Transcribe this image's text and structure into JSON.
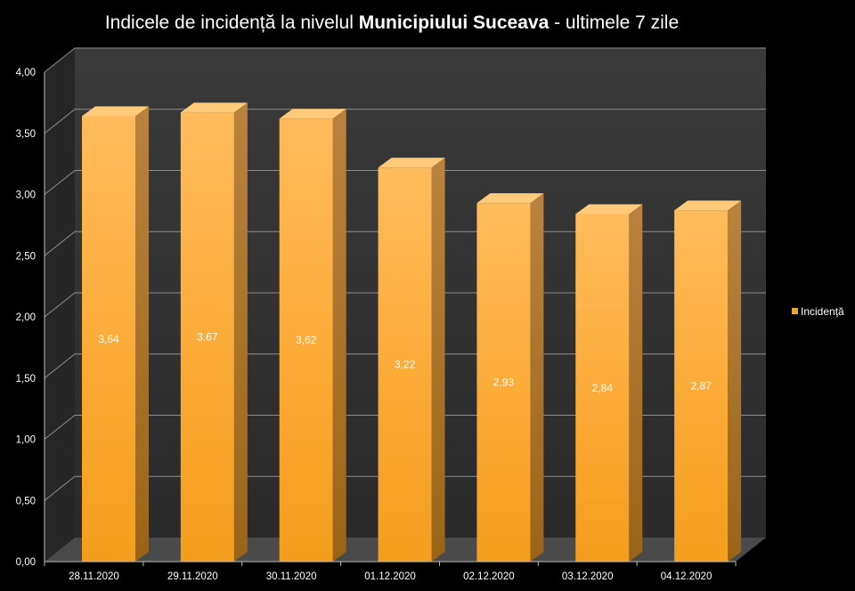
{
  "chart_data": {
    "type": "bar",
    "title": {
      "part1": "Indicele de incidență la nivelul ",
      "part2_bold": "Municipiului Suceava",
      "part3": " - ultimele 7 zile"
    },
    "categories": [
      "28.11.2020",
      "29.11.2020",
      "30.11.2020",
      "01.12.2020",
      "02.12.2020",
      "03.12.2020",
      "04.12.2020"
    ],
    "series": [
      {
        "name": "Incidență",
        "values": [
          3.64,
          3.67,
          3.62,
          3.22,
          2.93,
          2.84,
          2.87
        ],
        "labels": [
          "3,64",
          "3,67",
          "3,62",
          "3,22",
          "2,93",
          "2,84",
          "2,87"
        ],
        "color": "#f5a623"
      }
    ],
    "y_ticks": [
      "0,00",
      "0,50",
      "1,00",
      "1,50",
      "2,00",
      "2,50",
      "3,00",
      "3,50",
      "4,00"
    ],
    "ylim": [
      0,
      4
    ],
    "legend_position": "right",
    "grid": true,
    "style": "3d-column",
    "colors": {
      "background": "#000000",
      "plot_wall": "#2f2f2f",
      "gridline": "#8a8a8a",
      "text": "#ffffff"
    }
  }
}
